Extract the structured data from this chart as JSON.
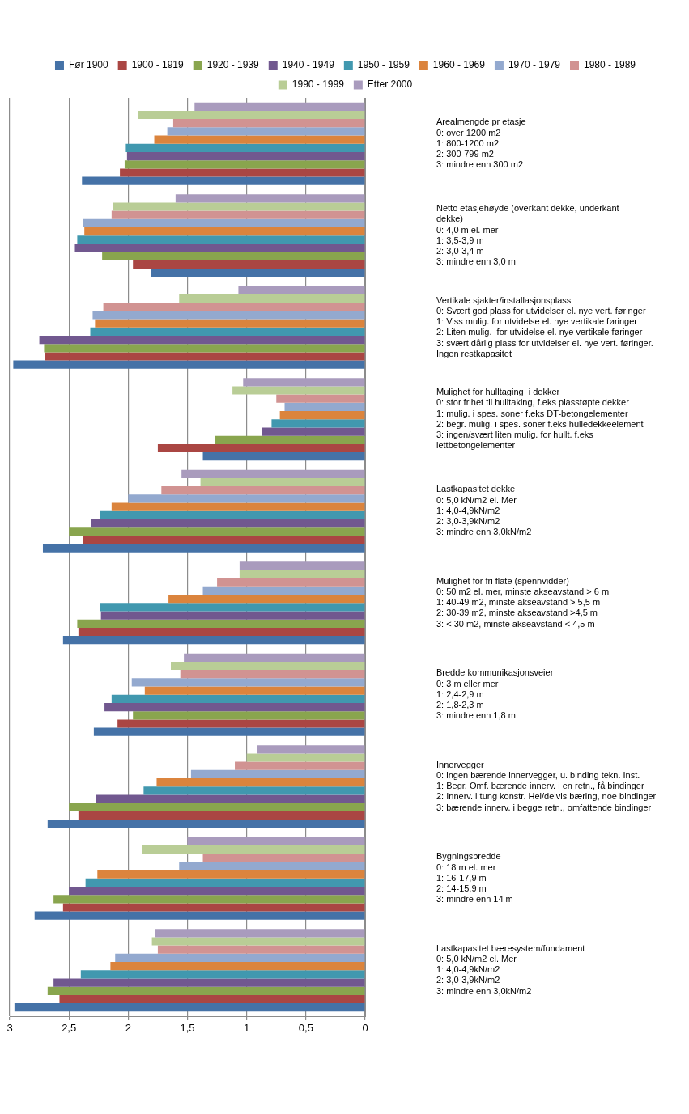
{
  "chart_data": {
    "type": "bar",
    "orientation": "horizontal",
    "categories": [
      "Arealmengde pr etasje\n0: over 1200 m2\n1: 800-1200 m2\n2: 300-799 m2\n3: mindre enn 300 m2",
      "Netto etasjehøyde (overkant dekke, underkant\ndekke)\n0: 4,0 m el. mer\n1: 3,5-3,9 m\n2: 3,0-3,4 m\n3: mindre enn 3,0 m",
      "Vertikale sjakter/installasjonsplass\n0: Svært god plass for utvidelser el. nye vert. føringer\n1: Viss mulig. for utvidelse el. nye vertikale føringer\n2: Liten mulig.  for utvidelse el. nye vertikale føringer\n3: svært dårlig plass for utvidelser el. nye vert. føringer.\nIngen restkapasitet",
      "Mulighet for hulltaging  i dekker\n0: stor frihet til hulltaking, f.eks plasstøpte dekker\n1: mulig. i spes. soner f.eks DT-betongelementer\n2: begr. mulig. i spes. soner f.eks hulledekkeelement\n3: ingen/svært liten mulig. for hullt. f.eks\nlettbetongelementer",
      "Lastkapasitet dekke\n0: 5,0 kN/m2 el. Mer\n1: 4,0-4,9kN/m2\n2: 3,0-3,9kN/m2\n3: mindre enn 3,0kN/m2",
      "Mulighet for fri flate (spennvidder)\n0: 50 m2 el. mer, minste akseavstand > 6 m\n1: 40-49 m2, minste akseavstand > 5,5 m\n2: 30-39 m2, minste akseavstand >4,5 m\n3: < 30 m2, minste akseavstand < 4,5 m",
      "Bredde kommunikasjonsveier\n0: 3 m eller mer\n1: 2,4-2,9 m\n2: 1,8-2,3 m\n3: mindre enn 1,8 m",
      "Innervegger\n0: ingen bærende innervegger, u. binding tekn. Inst.\n1: Begr. Omf. bærende innerv. i en retn., få bindinger\n2: Innerv. i tung konstr. Hel/delvis bæring, noe bindinger\n3: bærende innerv. i begge retn., omfattende bindinger",
      "Bygningsbredde\n0: 18 m el. mer\n1: 16-17,9 m\n2: 14-15,9 m\n3: mindre enn 14 m",
      "Lastkapasitet bæresystem/fundament\n0: 5,0 kN/m2 el. Mer\n1: 4,0-4,9kN/m2\n2: 3,0-3,9kN/m2\n3: mindre enn 3,0kN/m2"
    ],
    "series": [
      {
        "name": "Før 1900",
        "color": "#4572a7",
        "values": [
          2.39,
          1.81,
          2.97,
          1.37,
          2.72,
          2.55,
          2.29,
          2.68,
          2.79,
          2.96
        ]
      },
      {
        "name": "1900 - 1919",
        "color": "#aa4643",
        "values": [
          2.07,
          1.96,
          2.7,
          1.75,
          2.38,
          2.42,
          2.09,
          2.42,
          2.55,
          2.58
        ]
      },
      {
        "name": "1920 - 1939",
        "color": "#89a54e",
        "values": [
          2.03,
          2.22,
          2.71,
          1.27,
          2.5,
          2.43,
          1.96,
          2.5,
          2.63,
          2.68
        ]
      },
      {
        "name": "1940 - 1949",
        "color": "#71588f",
        "values": [
          2.01,
          2.45,
          2.75,
          0.87,
          2.31,
          2.23,
          2.2,
          2.27,
          2.5,
          2.63
        ]
      },
      {
        "name": "1950 - 1959",
        "color": "#4198af",
        "values": [
          2.02,
          2.43,
          2.32,
          0.79,
          2.24,
          2.24,
          2.14,
          1.87,
          2.36,
          2.4
        ]
      },
      {
        "name": "1960 - 1969",
        "color": "#db843d",
        "values": [
          1.78,
          2.37,
          2.28,
          0.72,
          2.14,
          1.66,
          1.86,
          1.76,
          2.26,
          2.15
        ]
      },
      {
        "name": "1970 - 1979",
        "color": "#93a9cf",
        "values": [
          1.67,
          2.38,
          2.3,
          0.68,
          2.0,
          1.37,
          1.97,
          1.47,
          1.57,
          2.11
        ]
      },
      {
        "name": "1980 - 1989",
        "color": "#d19392",
        "values": [
          1.62,
          2.14,
          2.21,
          0.75,
          1.72,
          1.25,
          1.56,
          1.1,
          1.37,
          1.75
        ]
      },
      {
        "name": "1990 - 1999",
        "color": "#b9cd96",
        "values": [
          1.92,
          2.13,
          1.57,
          1.12,
          1.39,
          1.06,
          1.64,
          1.0,
          1.88,
          1.8
        ]
      },
      {
        "name": "Etter 2000",
        "color": "#a99bbd",
        "values": [
          1.44,
          1.6,
          1.07,
          1.03,
          1.55,
          1.06,
          1.53,
          0.91,
          1.5,
          1.77
        ]
      }
    ],
    "xlim": [
      3,
      0
    ],
    "xticks": [
      0,
      {
        "value": 0.5,
        "label": "0,5"
      },
      1,
      {
        "value": 1.5,
        "label": "1,5"
      },
      2,
      {
        "value": 2.5,
        "label": "2,5"
      },
      3
    ],
    "grid": "x",
    "legend": "top"
  }
}
